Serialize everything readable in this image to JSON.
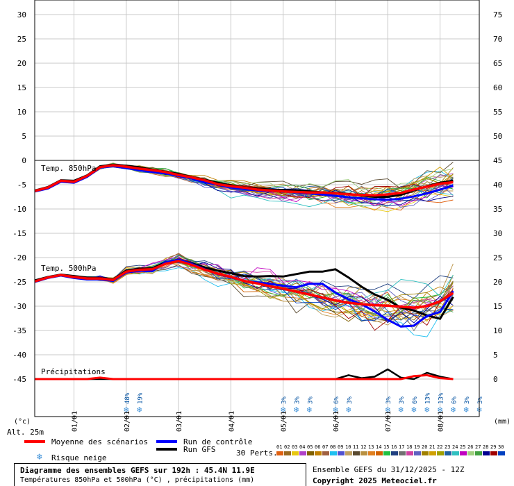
{
  "chart_data": {
    "type": "line",
    "left_axis_labels": [
      "30",
      "25",
      "20",
      "15",
      "10",
      "5",
      "0",
      "-5",
      "-10",
      "-15",
      "-20",
      "-25",
      "-30",
      "-35",
      "-40",
      "-45"
    ],
    "right_axis_labels": [
      "75",
      "70",
      "65",
      "60",
      "55",
      "50",
      "45",
      "40",
      "35",
      "30",
      "25",
      "20",
      "15",
      "10",
      "5",
      "0"
    ],
    "left_axis_unit": "(°c)",
    "right_axis_unit": "(mm)",
    "altitude": "Alt. 25m",
    "dates": [
      "01/01",
      "02/01",
      "03/01",
      "04/01",
      "05/01",
      "06/01",
      "07/01",
      "08/01"
    ],
    "panel_labels": {
      "t850": "Temp. 850hPa",
      "t500": "Temp. 500hPa",
      "precip": "Précipitations"
    },
    "temp_ylim": [
      -45,
      30
    ],
    "precip_ylim": [
      0,
      75
    ],
    "x_hours": [
      0,
      6,
      12,
      18,
      24,
      30,
      36,
      42,
      48,
      54,
      60,
      66,
      72,
      78,
      84,
      90,
      96,
      102,
      108,
      114,
      120,
      126,
      132,
      138,
      144,
      150,
      156,
      162,
      168,
      174,
      180,
      186,
      192
    ],
    "t850_mean": [
      -6.3,
      -5.6,
      -4.2,
      -4.4,
      -3.2,
      -1.4,
      -1.0,
      -1.3,
      -1.7,
      -2.0,
      -2.4,
      -3.0,
      -3.5,
      -4.1,
      -4.9,
      -5.3,
      -5.6,
      -6.0,
      -6.2,
      -6.4,
      -6.5,
      -6.6,
      -6.6,
      -6.8,
      -7.0,
      -7.1,
      -7.2,
      -7.0,
      -6.7,
      -6.0,
      -5.4,
      -4.8,
      -4.5
    ],
    "t850_control": [
      -6.4,
      -5.8,
      -4.4,
      -4.6,
      -3.4,
      -1.5,
      -1.2,
      -1.6,
      -2.0,
      -2.4,
      -2.7,
      -3.2,
      -3.7,
      -4.5,
      -5.0,
      -5.6,
      -5.9,
      -6.2,
      -6.3,
      -6.4,
      -6.6,
      -6.8,
      -7.0,
      -7.3,
      -7.6,
      -7.8,
      -8.0,
      -8.1,
      -7.9,
      -7.4,
      -6.8,
      -6.0,
      -5.2
    ],
    "t850_gfs": [
      -6.2,
      -5.5,
      -4.1,
      -4.2,
      -3.1,
      -1.2,
      -0.9,
      -1.1,
      -1.4,
      -1.9,
      -2.3,
      -2.8,
      -3.4,
      -4.0,
      -4.6,
      -5.1,
      -5.5,
      -5.8,
      -6.0,
      -6.1,
      -6.2,
      -6.4,
      -6.6,
      -6.7,
      -6.9,
      -7.2,
      -7.5,
      -7.5,
      -7.1,
      -6.2,
      -5.3,
      -4.6,
      -4.2
    ],
    "t500_mean": [
      -24.9,
      -24.1,
      -23.6,
      -24.0,
      -24.3,
      -24.3,
      -24.6,
      -22.9,
      -22.5,
      -22.4,
      -21.3,
      -20.7,
      -21.5,
      -22.5,
      -23.3,
      -24.0,
      -24.8,
      -25.3,
      -25.9,
      -26.4,
      -27.0,
      -27.6,
      -28.2,
      -28.8,
      -29.3,
      -29.6,
      -29.8,
      -29.9,
      -30.1,
      -30.3,
      -30.0,
      -29.0,
      -27.3
    ],
    "t500_control": [
      -25.0,
      -24.2,
      -23.7,
      -24.2,
      -24.5,
      -24.5,
      -24.8,
      -23.1,
      -22.7,
      -22.8,
      -21.0,
      -20.4,
      -21.3,
      -22.4,
      -23.4,
      -24.1,
      -24.8,
      -25.1,
      -25.4,
      -25.8,
      -26.1,
      -25.4,
      -25.4,
      -27.2,
      -28.6,
      -29.6,
      -31.1,
      -32.8,
      -34.2,
      -34.0,
      -32.0,
      -31.2,
      -26.9
    ],
    "t500_gfs": [
      -24.7,
      -24.0,
      -23.5,
      -23.8,
      -24.1,
      -24.2,
      -24.5,
      -22.7,
      -22.3,
      -22.2,
      -21.0,
      -20.5,
      -21.2,
      -22.0,
      -22.7,
      -23.2,
      -23.8,
      -23.9,
      -23.8,
      -23.9,
      -23.4,
      -22.9,
      -22.9,
      -22.4,
      -24.1,
      -26.0,
      -27.6,
      -28.7,
      -30.3,
      -30.9,
      -31.9,
      -32.6,
      -28.1
    ],
    "precip_mean": [
      0,
      0,
      0,
      0,
      0,
      0.3,
      0,
      0,
      0,
      0,
      0,
      0,
      0,
      0,
      0,
      0,
      0,
      0,
      0,
      0,
      0,
      0,
      0,
      0,
      0,
      0,
      0,
      0,
      0,
      0.6,
      0.8,
      0.2,
      0
    ],
    "precip_gfs": [
      0,
      0,
      0,
      0,
      0,
      0,
      0,
      0,
      0,
      0,
      0,
      0,
      0,
      0,
      0,
      0,
      0,
      0,
      0,
      0,
      0,
      0,
      0,
      0,
      0.8,
      0.2,
      0.5,
      2.0,
      0.3,
      0,
      1.3,
      0.5,
      0
    ],
    "member_colors": [
      "#e06010",
      "#9a6a20",
      "#e8c810",
      "#b040c8",
      "#806000",
      "#c08000",
      "#a06040",
      "#20c0f0",
      "#5050d0",
      "#c0a060",
      "#5a4a30",
      "#b89040",
      "#e08020",
      "#d06000",
      "#20c040",
      "#204080",
      "#707070",
      "#d040a0",
      "#6060c0",
      "#a08000",
      "#d0a000",
      "#a0a000",
      "#2060a0",
      "#30c0c0",
      "#c000c0",
      "#a0d080",
      "#40a040",
      "#000090",
      "#a00000",
      "#0040c0"
    ],
    "member_numbers": [
      "01",
      "02",
      "03",
      "04",
      "05",
      "06",
      "07",
      "08",
      "09",
      "10",
      "11",
      "12",
      "13",
      "14",
      "15",
      "16",
      "17",
      "18",
      "19",
      "20",
      "21",
      "22",
      "23",
      "24",
      "25",
      "26",
      "27",
      "28",
      "29",
      "30"
    ],
    "snow_risk": [
      {
        "h": 42,
        "pct": "48%"
      },
      {
        "h": 48,
        "pct": "19%"
      },
      {
        "h": 114,
        "pct": "3%"
      },
      {
        "h": 120,
        "pct": "3%"
      },
      {
        "h": 126,
        "pct": "3%"
      },
      {
        "h": 138,
        "pct": "6%"
      },
      {
        "h": 144,
        "pct": "3%"
      },
      {
        "h": 162,
        "pct": "3%"
      },
      {
        "h": 168,
        "pct": "3%"
      },
      {
        "h": 174,
        "pct": "6%"
      },
      {
        "h": 180,
        "pct": "13%"
      },
      {
        "h": 186,
        "pct": "13%"
      },
      {
        "h": 192,
        "pct": "6%"
      },
      {
        "h": 198,
        "pct": "3%"
      },
      {
        "h": 204,
        "pct": "3%"
      }
    ]
  },
  "legend": {
    "mean": "Moyenne des scénarios",
    "control": "Run de contrôle",
    "gfs": "Run GFS",
    "snow": "Risque neige",
    "perts": "30 Perts."
  },
  "colors": {
    "mean": "#ff0000",
    "control": "#0000ff",
    "gfs": "#000000",
    "grid": "#c8c8c8"
  },
  "footer": {
    "title": "Diagramme des ensembles GEFS sur 192h : 45.4N 11.9E",
    "subtitle": "Températures 850hPa et 500hPa (°C) , précipitations (mm)",
    "ensemble": "Ensemble GEFS du 31/12/2025 - 12Z",
    "copyright": "Copyright 2025 Meteociel.fr"
  }
}
